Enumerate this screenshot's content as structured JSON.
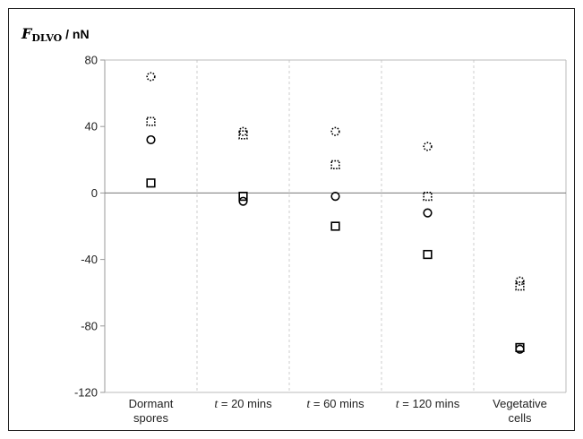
{
  "chart_data": {
    "type": "scatter",
    "ylabel": {
      "symbol": "F",
      "subscript": "DLVO",
      "unit": " / nN"
    },
    "ylim": [
      -120,
      80
    ],
    "yticks": [
      "80",
      "40",
      "0",
      "-40",
      "-80",
      "-120"
    ],
    "categories": [
      {
        "lines": [
          "Dormant",
          "spores"
        ]
      },
      {
        "var": "t",
        "text": " = 20 mins"
      },
      {
        "var": "t",
        "text": " = 60 mins"
      },
      {
        "var": "t",
        "text": " = 120 mins"
      },
      {
        "lines": [
          "Vegetative",
          "cells"
        ]
      }
    ],
    "grid": "vertical category separators (dashed)",
    "zero_line": true,
    "series": [
      {
        "marker": "circle",
        "style": "dotted",
        "values": [
          70,
          37,
          37,
          28,
          -53
        ]
      },
      {
        "marker": "square",
        "style": "dotted",
        "values": [
          43,
          35,
          17,
          -2,
          -56
        ]
      },
      {
        "marker": "circle",
        "style": "solid",
        "values": [
          32,
          -5,
          -2,
          -12,
          -94
        ]
      },
      {
        "marker": "square",
        "style": "solid",
        "values": [
          6,
          -2,
          -20,
          -37,
          -93
        ]
      }
    ]
  }
}
